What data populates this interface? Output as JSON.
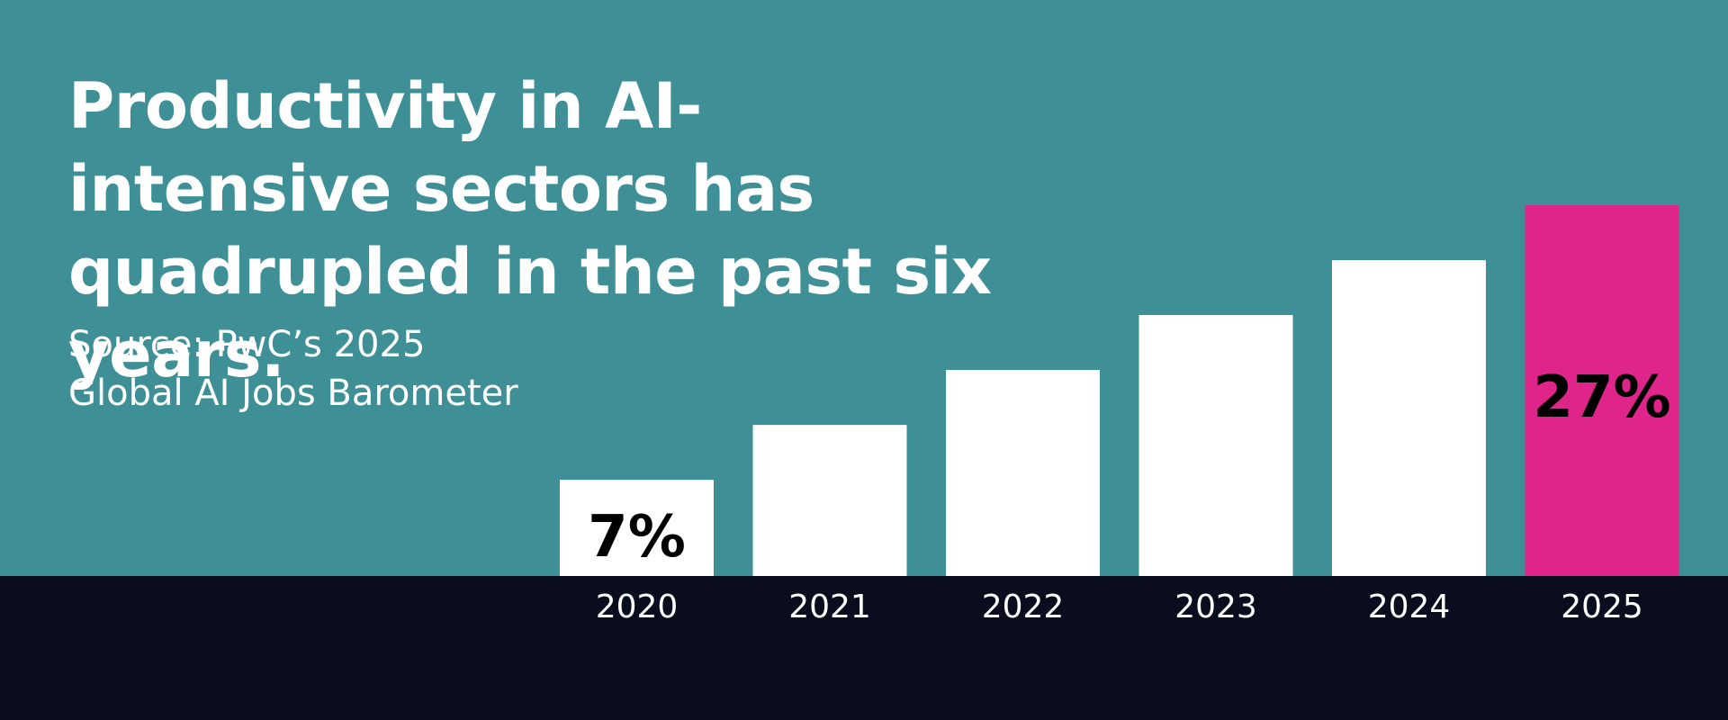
{
  "title": "Productivity in AI-intensive sectors has quadrupled in the past six years.",
  "source_lines": [
    "Source: PwC’s 2025",
    "Global AI Jobs Barometer"
  ],
  "colors": {
    "background": "#3e8f96",
    "footer": "#0a0d1e",
    "bar": "#ffffff",
    "highlight_bar": "#e0258a",
    "text": "#ffffff",
    "label": "#000000"
  },
  "chart_data": {
    "type": "bar",
    "title": "Productivity in AI-intensive sectors has quadrupled in the past six years.",
    "categories": [
      "2020",
      "2021",
      "2022",
      "2023",
      "2024",
      "2025"
    ],
    "values": [
      7,
      11,
      15,
      19,
      23,
      27
    ],
    "unit": "%",
    "data_labels": [
      "7%",
      "",
      "",
      "",
      "",
      "27%"
    ],
    "highlight_index": 5,
    "ylim": [
      0,
      27
    ],
    "xlabel": "",
    "ylabel": "",
    "grid": false,
    "legend": "none"
  }
}
